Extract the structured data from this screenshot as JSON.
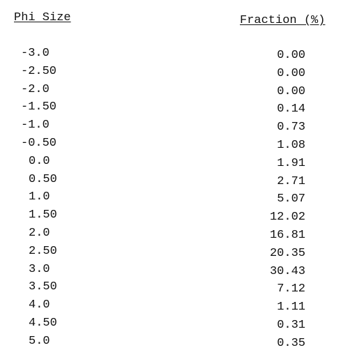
{
  "table": {
    "headers": {
      "phi_size": "Phi Size",
      "fraction": "Fraction (%)"
    },
    "rows": [
      {
        "phi": "-3.0",
        "fraction": "0.00"
      },
      {
        "phi": "-2.50",
        "fraction": "0.00"
      },
      {
        "phi": "-2.0",
        "fraction": "0.00"
      },
      {
        "phi": "-1.50",
        "fraction": "0.14"
      },
      {
        "phi": "-1.0",
        "fraction": "0.73"
      },
      {
        "phi": "-0.50",
        "fraction": "1.08"
      },
      {
        "phi": "0.0",
        "fraction": "1.91"
      },
      {
        "phi": "0.50",
        "fraction": "2.71"
      },
      {
        "phi": "1.0",
        "fraction": "5.07"
      },
      {
        "phi": "1.50",
        "fraction": "12.02"
      },
      {
        "phi": "2.0",
        "fraction": "16.81"
      },
      {
        "phi": "2.50",
        "fraction": "20.35"
      },
      {
        "phi": "3.0",
        "fraction": "30.43"
      },
      {
        "phi": "3.50",
        "fraction": "7.12"
      },
      {
        "phi": "4.0",
        "fraction": "1.11"
      },
      {
        "phi": "4.50",
        "fraction": "0.31"
      },
      {
        "phi": "5.0",
        "fraction": "0.35"
      }
    ]
  }
}
